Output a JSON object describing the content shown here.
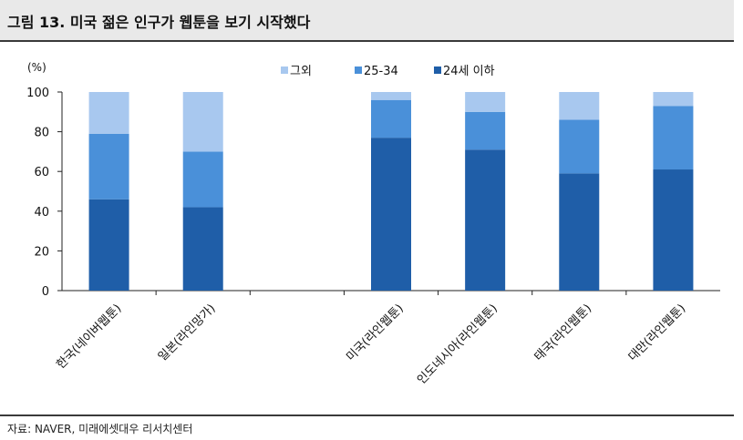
{
  "title": "그림 13. 미국 젊은 인구가 웹툰을 보기 시작했다",
  "source": "자료: NAVER, 미래에셋대우 리서치센터",
  "colors": {
    "young": "#1f5ea8",
    "mid": "#4a90d9",
    "other": "#a8c8ef"
  },
  "chart_data": {
    "type": "bar",
    "stacked": true,
    "unit_label": "(%)",
    "categories": [
      "한국(네이버웹툰)",
      "일본(라인망가)",
      "",
      "미국(라인웹툰)",
      "인도네시아(라인웹툰)",
      "태국(라인웹툰)",
      "대만(라인웹툰)"
    ],
    "series": [
      {
        "name": "24세 이하",
        "values": [
          46,
          42,
          null,
          77,
          71,
          59,
          61
        ]
      },
      {
        "name": "25-34",
        "values": [
          33,
          28,
          null,
          19,
          19,
          27,
          32
        ]
      },
      {
        "name": "그외",
        "values": [
          21,
          30,
          null,
          4,
          10,
          14,
          7
        ]
      }
    ],
    "legend_order": [
      "그외",
      "25-34",
      "24세 이하"
    ],
    "ylim": [
      0,
      100
    ],
    "yticks": [
      "0",
      "20",
      "40",
      "60",
      "80",
      "100"
    ],
    "legend_position": "top-center",
    "grid": false
  }
}
